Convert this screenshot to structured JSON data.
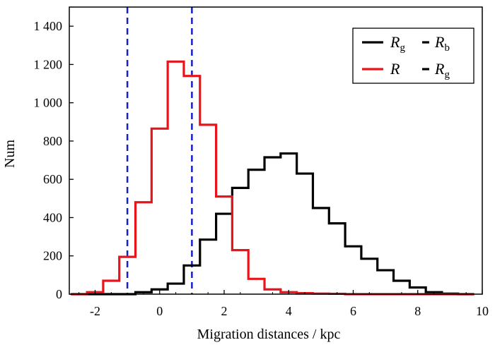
{
  "chart_data": {
    "type": "line",
    "style": "step-histogram",
    "xlabel": "Migration distances / kpc",
    "ylabel": "Num",
    "xlim": [
      -2.8,
      10
    ],
    "ylim": [
      0,
      1500
    ],
    "x_ticks": [
      {
        "value": -2,
        "label": "-2"
      },
      {
        "value": 0,
        "label": "0"
      },
      {
        "value": 2,
        "label": "2"
      },
      {
        "value": 4,
        "label": "4"
      },
      {
        "value": 6,
        "label": "6"
      },
      {
        "value": 8,
        "label": "8"
      },
      {
        "value": 10,
        "label": "10"
      }
    ],
    "y_ticks": [
      {
        "value": 0,
        "label": "0"
      },
      {
        "value": 200,
        "label": "200"
      },
      {
        "value": 400,
        "label": "400"
      },
      {
        "value": 600,
        "label": "600"
      },
      {
        "value": 800,
        "label": "800"
      },
      {
        "value": 1000,
        "label": "1 000"
      },
      {
        "value": 1200,
        "label": "1 200"
      },
      {
        "value": 1400,
        "label": "1 400"
      }
    ],
    "bin_edges": [
      -2.75,
      -2.25,
      -1.75,
      -1.25,
      -0.75,
      -0.25,
      0.25,
      0.75,
      1.25,
      1.75,
      2.25,
      2.75,
      3.25,
      3.75,
      4.25,
      4.75,
      5.25,
      5.75,
      6.25,
      6.75,
      7.25,
      7.75,
      8.25,
      8.75,
      9.25,
      9.75
    ],
    "series": [
      {
        "name": "R_g - R_b",
        "color": "#000000",
        "values": [
          0,
          0,
          0,
          0,
          10,
          25,
          55,
          150,
          285,
          420,
          555,
          650,
          715,
          735,
          630,
          450,
          370,
          250,
          185,
          125,
          70,
          35,
          10,
          3,
          0
        ]
      },
      {
        "name": "R - R_g",
        "color": "#e8141c",
        "values": [
          0,
          10,
          70,
          195,
          480,
          865,
          1215,
          1140,
          885,
          510,
          230,
          80,
          25,
          10,
          5,
          3,
          2,
          0,
          0,
          0,
          0,
          0,
          0,
          0,
          0
        ]
      }
    ],
    "reference_lines": [
      {
        "x": -1,
        "color": "#1420c8",
        "style": "dashed"
      },
      {
        "x": 1,
        "color": "#1420c8",
        "style": "dashed"
      }
    ],
    "legend": {
      "position": "top-right",
      "entries": [
        {
          "main": "R",
          "sub": "g",
          "color": "#000000",
          "style": "solid"
        },
        {
          "main": "R",
          "sub": "b",
          "color": "#000000",
          "style": "dashed"
        },
        {
          "main": "R",
          "sub": "",
          "color": "#e8141c",
          "style": "solid"
        },
        {
          "main": "R",
          "sub": "g",
          "color": "#000000",
          "style": "dashed"
        }
      ]
    }
  }
}
